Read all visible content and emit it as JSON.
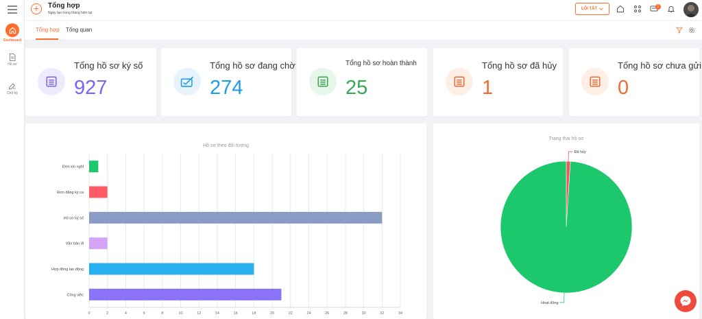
{
  "header": {
    "title": "Tổng hợp",
    "subtitle": "Ngày tạo trong tháng hiện tại",
    "shortcut_label": "LỐI TẮT",
    "notification_count": "1"
  },
  "sidebar": {
    "items": [
      {
        "label": "Dashboard",
        "icon": "home-icon"
      },
      {
        "label": "Hồ sơ",
        "icon": "document-icon"
      },
      {
        "label": "Chữ ký",
        "icon": "signature-icon"
      }
    ]
  },
  "tabs": [
    {
      "label": "Tổng hợp",
      "active": true
    },
    {
      "label": "Tổng quan",
      "active": false
    }
  ],
  "stats": [
    {
      "label": "Tổng hồ sơ ký số",
      "value": "927",
      "color": "#7b61ff",
      "bg": "#eeebff",
      "icon": "list-icon"
    },
    {
      "label": "Tổng hồ sơ đang chờ",
      "value": "274",
      "color": "#1e9be9",
      "bg": "#e6f3fd",
      "icon": "inbox-check-icon"
    },
    {
      "label": "Tổng hồ sơ hoàn thành",
      "value": "25",
      "color": "#34a853",
      "bg": "#e6f6ea",
      "icon": "list-icon"
    },
    {
      "label": "Tổng hồ sơ đã hủy",
      "value": "1",
      "color": "#f16a34",
      "bg": "#fdeee6",
      "icon": "list-icon"
    },
    {
      "label": "Tổng hồ sơ chưa gửi",
      "value": "0",
      "color": "#f16a34",
      "bg": "#fdeee6",
      "icon": "list-icon"
    }
  ],
  "bar_chart": {
    "type": "bar",
    "title": "Hồ sơ theo đối tượng",
    "categories": [
      "Đơn xin nghỉ",
      "Đơn đăng ký ca",
      "Hồ sơ ký số",
      "Văn bản đi",
      "Hợp đồng lao động",
      "Công việc"
    ],
    "values": [
      1,
      2,
      32,
      2,
      18,
      21
    ],
    "colors": [
      "#1cc86b",
      "#ff5b65",
      "#8a9bc4",
      "#d4a4f7",
      "#27aff0",
      "#8a73f7"
    ],
    "xlim": [
      0,
      34
    ],
    "xticks": [
      "0",
      "2",
      "4",
      "6",
      "8",
      "10",
      "12",
      "14",
      "16",
      "18",
      "20",
      "22",
      "24",
      "26",
      "28",
      "30",
      "32",
      "34"
    ]
  },
  "pie_chart": {
    "type": "pie",
    "title": "Trạng thái hồ sơ",
    "slices": [
      {
        "label": "Đã hủy",
        "value": 1,
        "color": "#f0595c"
      },
      {
        "label": "Hoạt động",
        "value": 99,
        "color": "#1cc86b"
      }
    ]
  },
  "chart_data": [
    {
      "type": "bar",
      "title": "Hồ sơ theo đối tượng",
      "categories": [
        "Đơn xin nghỉ",
        "Đơn đăng ký ca",
        "Hồ sơ ký số",
        "Văn bản đi",
        "Hợp đồng lao động",
        "Công việc"
      ],
      "values": [
        1,
        2,
        32,
        2,
        18,
        21
      ],
      "xlim": [
        0,
        34
      ],
      "grid": true
    },
    {
      "type": "pie",
      "title": "Trạng thái hồ sơ",
      "labels": [
        "Đã hủy",
        "Hoạt động"
      ],
      "values": [
        1,
        99
      ]
    }
  ]
}
